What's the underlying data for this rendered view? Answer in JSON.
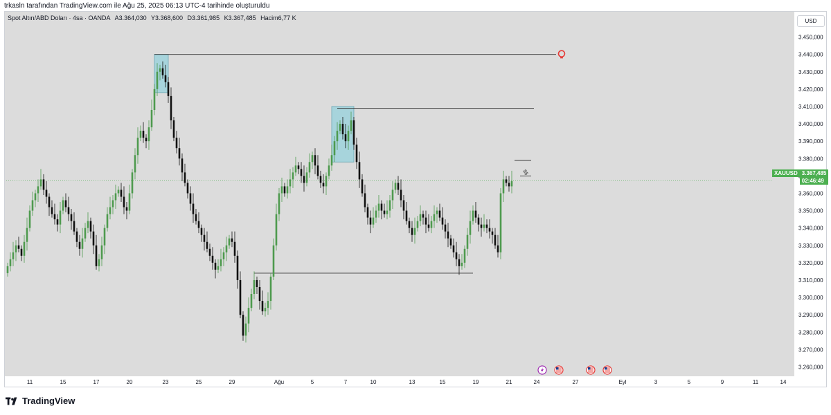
{
  "caption": "trkasln tarafından TradingView.com ile Ağu 25, 2025 06:13 UTC-4 tarihinde oluşturuldu",
  "legend": {
    "symbol": "Spot Altın/ABD Doları · 4sa · OANDA",
    "open": "A3.364,030",
    "high": "Y3.368,600",
    "low": "D3.361,985",
    "close": "K3.367,485",
    "volume": "Hacim6,77 K"
  },
  "currency": "USD",
  "price_label": {
    "symbol": "XAUUSD",
    "price": "3.367,485",
    "countdown": "02:46:49"
  },
  "footer": {
    "brand": "TradingView"
  },
  "colors": {
    "up": "#4e9a4e",
    "down": "#111111",
    "box_fill": "#a7d4dc",
    "alert": "#e53935",
    "price_line": "#4caf50"
  },
  "icons": [
    "bulb-alert-icon",
    "lightning-event-icon",
    "us-flag-event-icon"
  ],
  "chart_data": {
    "type": "candlestick",
    "symbol": "XAUUSD",
    "interval": "4sa",
    "ylim": [
      3255,
      3455
    ],
    "yticks": [
      "3.260,000",
      "3.270,000",
      "3.280,000",
      "3.290,000",
      "3.300,000",
      "3.310,000",
      "3.320,000",
      "3.330,000",
      "3.340,000",
      "3.350,000",
      "3.360,000",
      "3.370,000",
      "3.380,000",
      "3.390,000",
      "3.400,000",
      "3.410,000",
      "3.420,000",
      "3.430,000",
      "3.440,000",
      "3.450,000"
    ],
    "xticks": [
      "11",
      "15",
      "17",
      "20",
      "23",
      "25",
      "29",
      "Ağu",
      "5",
      "7",
      "10",
      "13",
      "15",
      "19",
      "21",
      "24",
      "27",
      "Eyl",
      "3",
      "5",
      "9",
      "11",
      "14"
    ],
    "close_series": [
      3318,
      3322,
      3326,
      3330,
      3328,
      3324,
      3332,
      3340,
      3350,
      3356,
      3360,
      3364,
      3368,
      3362,
      3358,
      3352,
      3348,
      3345,
      3342,
      3350,
      3356,
      3352,
      3348,
      3344,
      3338,
      3332,
      3328,
      3334,
      3340,
      3344,
      3338,
      3330,
      3318,
      3322,
      3330,
      3340,
      3348,
      3352,
      3356,
      3360,
      3362,
      3358,
      3352,
      3350,
      3360,
      3372,
      3382,
      3392,
      3396,
      3392,
      3390,
      3398,
      3408,
      3420,
      3430,
      3432,
      3428,
      3424,
      3416,
      3402,
      3392,
      3386,
      3380,
      3372,
      3366,
      3360,
      3354,
      3348,
      3344,
      3340,
      3336,
      3332,
      3328,
      3324,
      3320,
      3316,
      3318,
      3322,
      3326,
      3330,
      3334,
      3332,
      3324,
      3310,
      3290,
      3278,
      3285,
      3294,
      3302,
      3310,
      3306,
      3298,
      3292,
      3294,
      3298,
      3312,
      3330,
      3348,
      3360,
      3364,
      3360,
      3364,
      3368,
      3372,
      3376,
      3374,
      3370,
      3366,
      3372,
      3378,
      3382,
      3376,
      3370,
      3366,
      3364,
      3370,
      3376,
      3382,
      3390,
      3396,
      3400,
      3394,
      3390,
      3396,
      3402,
      3388,
      3378,
      3368,
      3360,
      3352,
      3346,
      3342,
      3346,
      3350,
      3354,
      3350,
      3348,
      3350,
      3356,
      3362,
      3366,
      3362,
      3356,
      3350,
      3344,
      3340,
      3336,
      3340,
      3344,
      3348,
      3346,
      3342,
      3340,
      3344,
      3348,
      3350,
      3346,
      3342,
      3338,
      3334,
      3330,
      3326,
      3322,
      3318,
      3320,
      3328,
      3336,
      3344,
      3350,
      3346,
      3342,
      3340,
      3342,
      3340,
      3338,
      3336,
      3330,
      3326,
      3360,
      3368,
      3366,
      3364,
      3367
    ],
    "annotations": [
      {
        "type": "rectangle",
        "from_index": 53,
        "to_index": 58,
        "y": [
          3418,
          3440
        ]
      },
      {
        "type": "rectangle",
        "from_index": 117,
        "to_index": 125,
        "y": [
          3378,
          3410
        ]
      },
      {
        "type": "hline",
        "from_index": 53,
        "to_index": 198,
        "y": 3440
      },
      {
        "type": "hline",
        "from_index": 119,
        "to_index": 190,
        "y": 3409
      },
      {
        "type": "hline",
        "from_index": 89,
        "to_index": 168,
        "y": 3314
      },
      {
        "type": "hline",
        "from_index": 183,
        "to_index": 189,
        "y": 3379
      },
      {
        "type": "hline",
        "from_index": 185,
        "to_index": 189,
        "y": 3370
      }
    ],
    "annotation_texts": [
      "$$"
    ],
    "grid": false,
    "last_price": 3367.485
  }
}
